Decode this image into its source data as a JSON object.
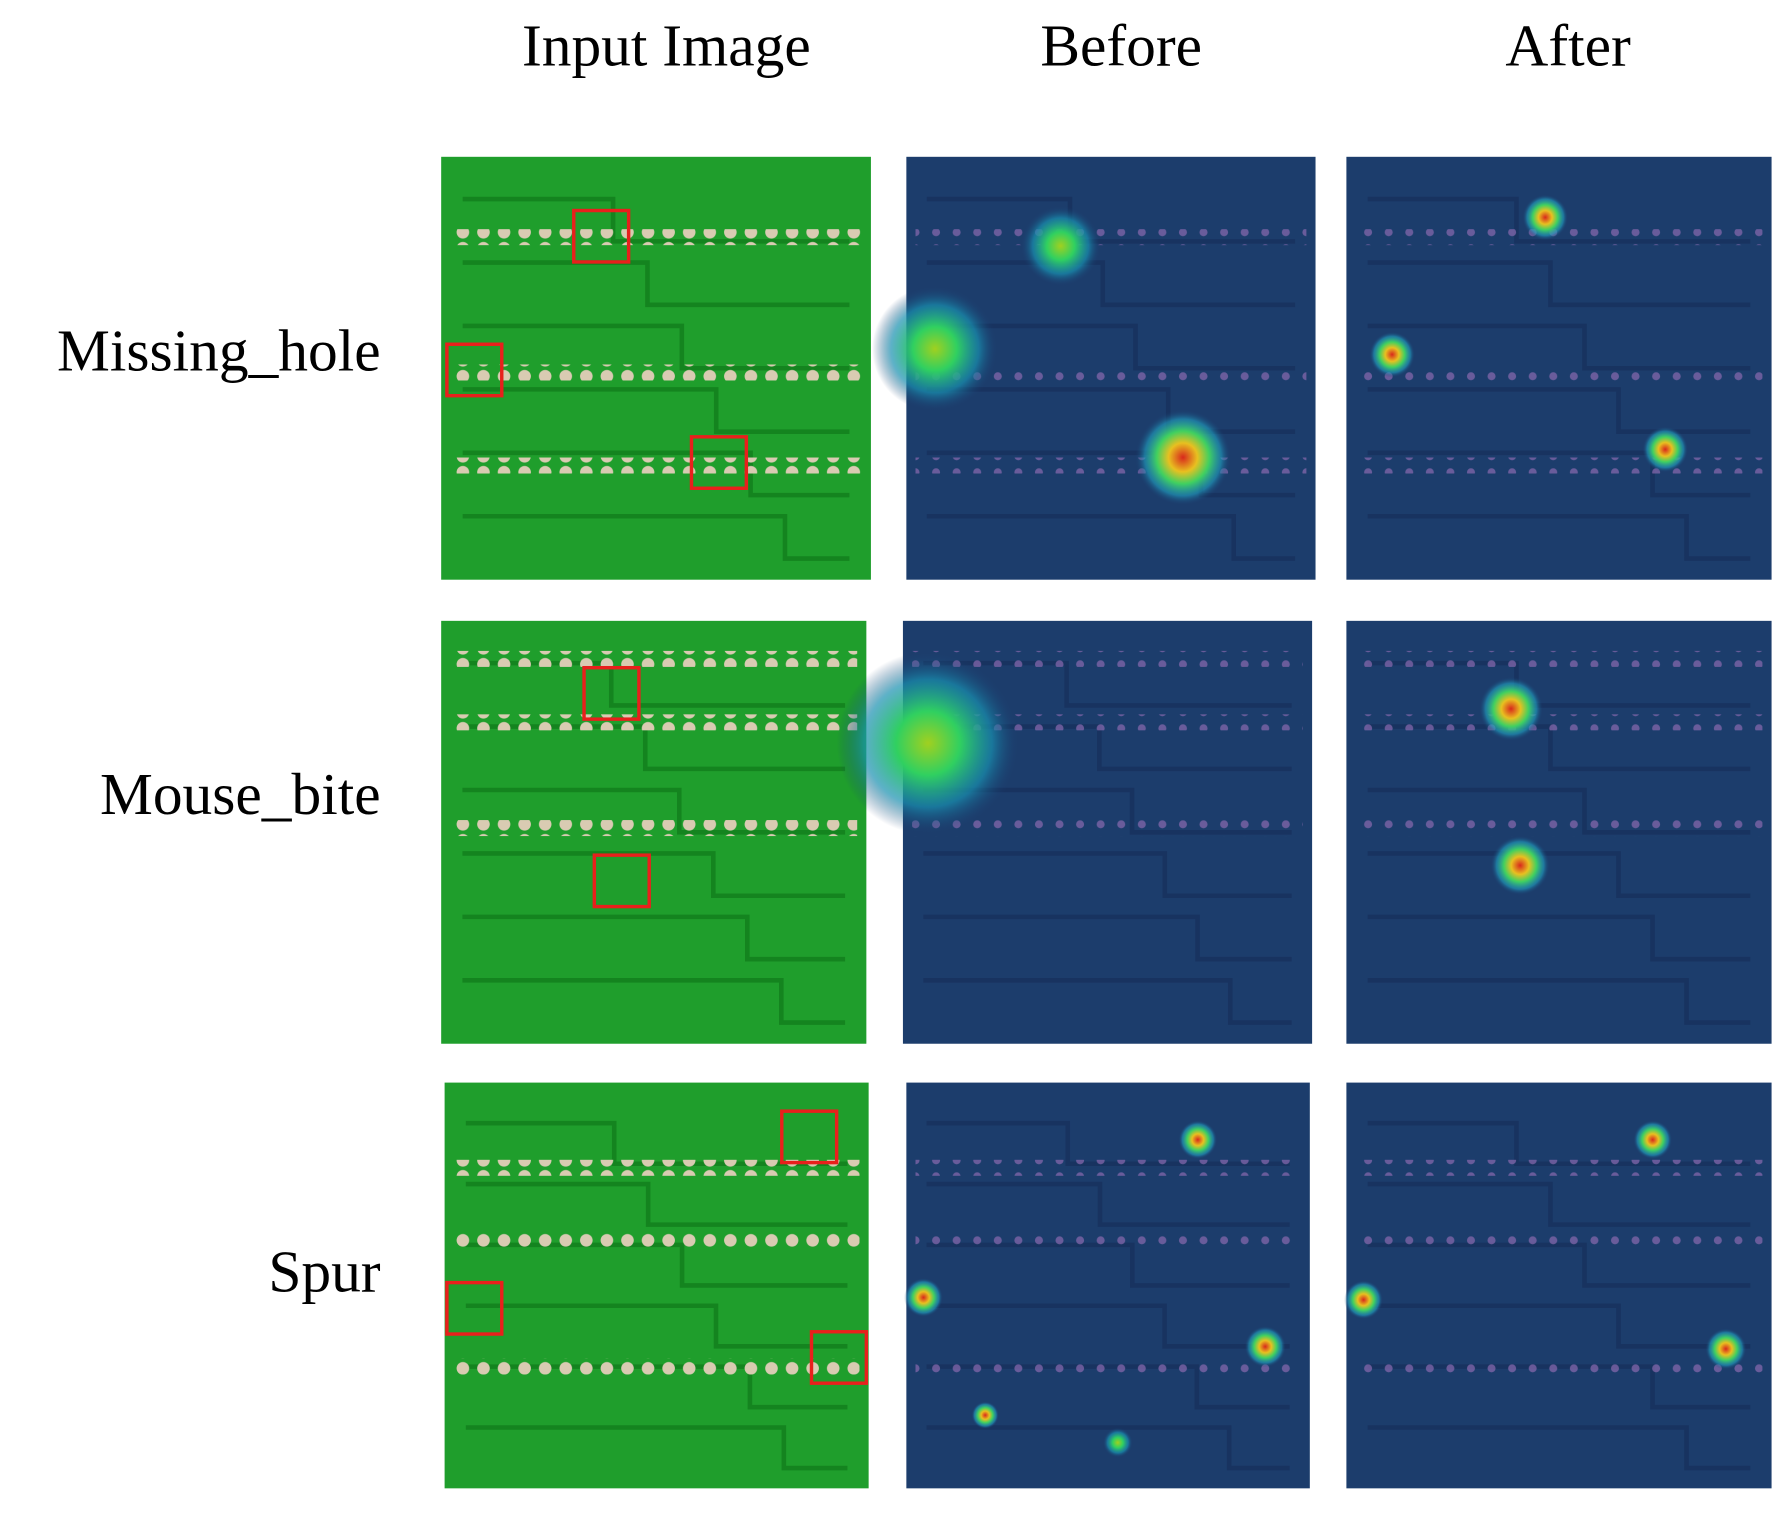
{
  "columns": [
    "Input Image",
    "Before",
    "After"
  ],
  "rows": [
    "Missing_hole",
    "Mouse_bite",
    "Spur"
  ]
}
